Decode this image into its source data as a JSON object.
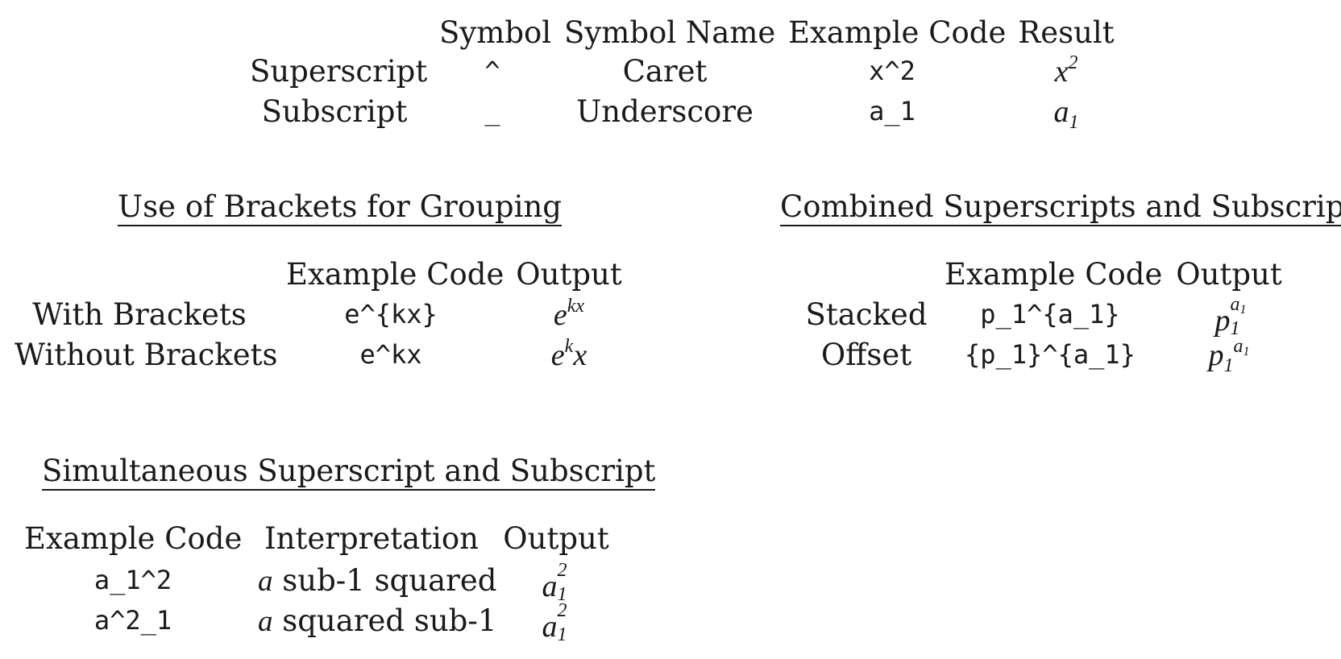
{
  "section1": {
    "headers": [
      "Symbol",
      "Symbol Name",
      "Example Code",
      "Result"
    ],
    "rows": [
      {
        "label": "Superscript",
        "symbol": "^",
        "name": "Caret",
        "code": "x^2",
        "base": "x",
        "sup": "2"
      },
      {
        "label": "Subscript",
        "symbol": "_",
        "name": "Underscore",
        "code": "a_1",
        "base": "a",
        "sub": "1"
      }
    ]
  },
  "section2": {
    "title": "Use of Brackets for Grouping",
    "headers": [
      "Example Code",
      "Output"
    ],
    "rows": [
      {
        "label": "With Brackets",
        "code": "e^{kx}",
        "base": "e",
        "sup": "kx"
      },
      {
        "label": "Without Brackets",
        "code": "e^kx",
        "base": "e",
        "sup": "k",
        "after": "x"
      }
    ]
  },
  "section3": {
    "title": "Combined Superscripts and Subscripts",
    "headers": [
      "Example Code",
      "Output"
    ],
    "rows": [
      {
        "label": "Stacked",
        "code": "p_1^{a_1}",
        "base": "p",
        "sub": "1",
        "sup": "a",
        "sup_sub": "1"
      },
      {
        "label": "Offset",
        "code": "{p_1}^{a_1}",
        "base": "p",
        "sub": "1",
        "sup": "a",
        "sup_sub": "1"
      }
    ]
  },
  "section4": {
    "title": "Simultaneous Superscript and Subscript",
    "headers": [
      "Example Code",
      "Interpretation",
      "Output"
    ],
    "rows": [
      {
        "code": "a_1^2",
        "interp_var": "a",
        "interp_text": " sub-1 squared",
        "base": "a",
        "sup": "2",
        "sub": "1"
      },
      {
        "code": "a^2_1",
        "interp_var": "a",
        "interp_text": " squared sub-1",
        "base": "a",
        "sup": "2",
        "sub": "1"
      }
    ]
  }
}
